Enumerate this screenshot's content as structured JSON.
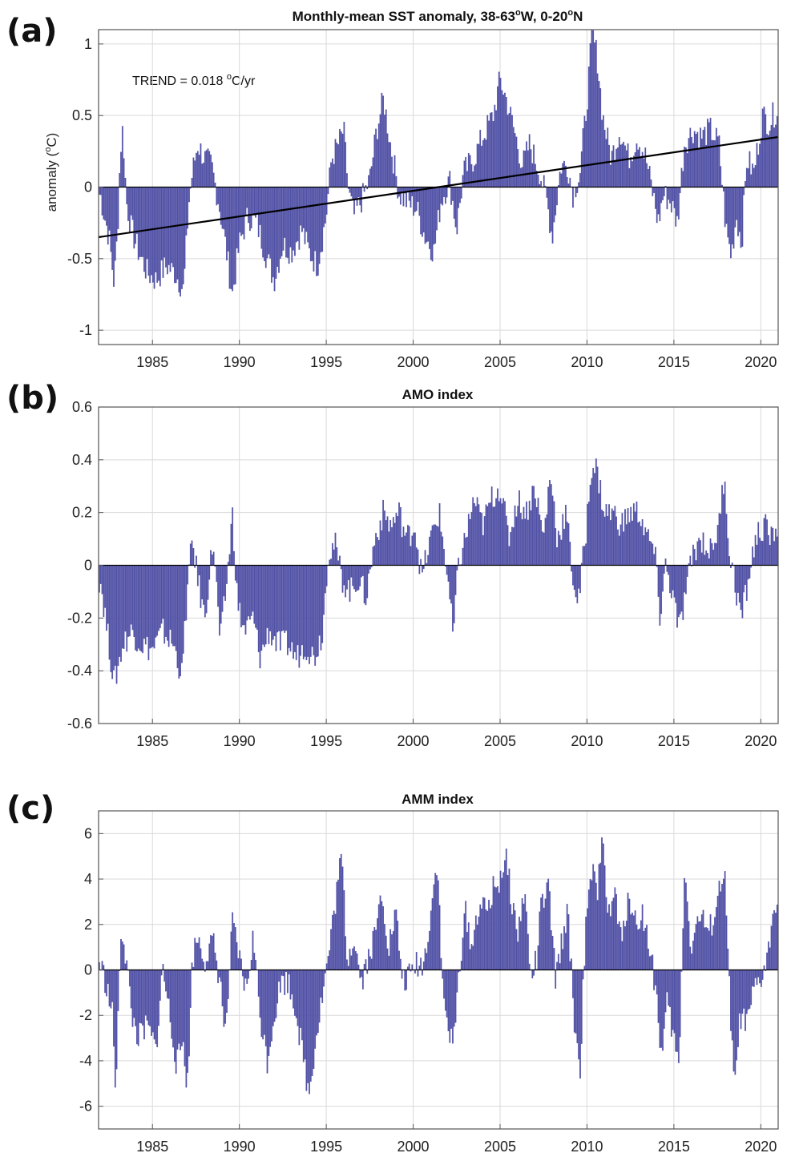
{
  "colors": {
    "bar": "#5151a6",
    "trend": "#000000",
    "grid": "#d9d9d9",
    "axis": "#555555"
  },
  "chart_data": [
    {
      "type": "bar",
      "panel_label": "(a)",
      "title": "Monthly-mean SST anomaly, 38-63°W, 0-20°N",
      "title_parts": {
        "a": "Monthly-mean SST anomaly, 38-63",
        "sup1": "o",
        "b": "W, 0-20",
        "sup2": "o",
        "c": "N"
      },
      "ylabel": "anomaly (°C)",
      "ylabel_parts": {
        "a": "anomaly (",
        "sup": "o",
        "b": "C)"
      },
      "annotation": "TREND = 0.018 °C/yr",
      "annotation_parts": {
        "a": "TREND = 0.018 ",
        "sup": "o",
        "b": "C/yr"
      },
      "xlim": [
        1981.9,
        2021.0
      ],
      "ylim": [
        -1.1,
        1.1
      ],
      "yticks": [
        -1,
        -0.5,
        0,
        0.5,
        1
      ],
      "ytick_labels": [
        "-1",
        "-0.5",
        "0",
        "0.5",
        "1"
      ],
      "xticks": [
        1985,
        1990,
        1995,
        2000,
        2005,
        2010,
        2015,
        2020
      ],
      "xtick_labels": [
        "1985",
        "1990",
        "1995",
        "2000",
        "2005",
        "2010",
        "2015",
        "2020"
      ],
      "grid": true,
      "trend": {
        "slope": 0.018,
        "x0": 1981.9,
        "y0": -0.35,
        "x1": 2021.0,
        "y1": 0.35
      },
      "keyframes": [
        [
          1982.0,
          -0.05
        ],
        [
          1982.2,
          -0.18
        ],
        [
          1982.5,
          -0.35
        ],
        [
          1982.8,
          -0.68
        ],
        [
          1983.0,
          -0.3
        ],
        [
          1983.15,
          0.25
        ],
        [
          1983.3,
          0.42
        ],
        [
          1983.5,
          -0.1
        ],
        [
          1983.8,
          -0.3
        ],
        [
          1984.2,
          -0.45
        ],
        [
          1984.7,
          -0.6
        ],
        [
          1985.2,
          -0.65
        ],
        [
          1985.8,
          -0.55
        ],
        [
          1986.3,
          -0.6
        ],
        [
          1986.8,
          -0.72
        ],
        [
          1987.1,
          -0.1
        ],
        [
          1987.3,
          0.1
        ],
        [
          1987.6,
          0.3
        ],
        [
          1988.0,
          0.2
        ],
        [
          1988.4,
          0.15
        ],
        [
          1988.8,
          -0.1
        ],
        [
          1989.2,
          -0.4
        ],
        [
          1989.6,
          -0.75
        ],
        [
          1990.0,
          -0.4
        ],
        [
          1990.5,
          -0.2
        ],
        [
          1991.0,
          -0.25
        ],
        [
          1991.6,
          -0.5
        ],
        [
          1992.0,
          -0.65
        ],
        [
          1992.5,
          -0.4
        ],
        [
          1993.0,
          -0.45
        ],
        [
          1993.6,
          -0.3
        ],
        [
          1994.0,
          -0.45
        ],
        [
          1994.5,
          -0.55
        ],
        [
          1995.0,
          -0.2
        ],
        [
          1995.3,
          0.2
        ],
        [
          1995.7,
          0.3
        ],
        [
          1996.0,
          0.4
        ],
        [
          1996.3,
          -0.05
        ],
        [
          1996.6,
          -0.2
        ],
        [
          1997.0,
          -0.1
        ],
        [
          1997.5,
          0.05
        ],
        [
          1997.9,
          0.4
        ],
        [
          1998.3,
          0.62
        ],
        [
          1998.7,
          0.3
        ],
        [
          1999.2,
          -0.05
        ],
        [
          1999.6,
          -0.1
        ],
        [
          2000.2,
          -0.15
        ],
        [
          2000.7,
          -0.35
        ],
        [
          2001.2,
          -0.45
        ],
        [
          2001.6,
          -0.1
        ],
        [
          2002.1,
          0.05
        ],
        [
          2002.5,
          -0.3
        ],
        [
          2002.9,
          0.1
        ],
        [
          2003.5,
          0.2
        ],
        [
          2004.0,
          0.35
        ],
        [
          2004.6,
          0.5
        ],
        [
          2005.0,
          0.75
        ],
        [
          2005.4,
          0.6
        ],
        [
          2005.8,
          0.4
        ],
        [
          2006.3,
          0.15
        ],
        [
          2006.7,
          0.3
        ],
        [
          2007.3,
          0.1
        ],
        [
          2007.7,
          -0.1
        ],
        [
          2008.0,
          -0.35
        ],
        [
          2008.5,
          0.15
        ],
        [
          2008.9,
          0.15
        ],
        [
          2009.2,
          -0.05
        ],
        [
          2009.6,
          0.1
        ],
        [
          2010.0,
          0.6
        ],
        [
          2010.3,
          1.08
        ],
        [
          2010.6,
          0.9
        ],
        [
          2010.9,
          0.5
        ],
        [
          2011.4,
          0.2
        ],
        [
          2011.9,
          0.4
        ],
        [
          2012.4,
          0.2
        ],
        [
          2012.9,
          0.35
        ],
        [
          2013.4,
          0.2
        ],
        [
          2013.8,
          -0.05
        ],
        [
          2014.1,
          -0.25
        ],
        [
          2014.4,
          -0.05
        ],
        [
          2014.8,
          -0.1
        ],
        [
          2015.2,
          -0.25
        ],
        [
          2015.6,
          0.3
        ],
        [
          2016.1,
          0.4
        ],
        [
          2016.6,
          0.35
        ],
        [
          2017.1,
          0.4
        ],
        [
          2017.6,
          0.3
        ],
        [
          2018.0,
          -0.3
        ],
        [
          2018.3,
          -0.48
        ],
        [
          2018.6,
          -0.2
        ],
        [
          2018.9,
          -0.4
        ],
        [
          2019.2,
          0.2
        ],
        [
          2019.6,
          0.1
        ],
        [
          2020.1,
          0.5
        ],
        [
          2020.5,
          0.45
        ],
        [
          2020.95,
          0.55
        ]
      ]
    },
    {
      "type": "bar",
      "panel_label": "(b)",
      "title": "AMO index",
      "xlim": [
        1981.9,
        2021.0
      ],
      "ylim": [
        -0.6,
        0.6
      ],
      "yticks": [
        -0.6,
        -0.4,
        -0.2,
        0,
        0.2,
        0.4,
        0.6
      ],
      "ytick_labels": [
        "-0.6",
        "-0.4",
        "-0.2",
        "0",
        "0.2",
        "0.4",
        "0.6"
      ],
      "xticks": [
        1985,
        1990,
        1995,
        2000,
        2005,
        2010,
        2015,
        2020
      ],
      "xtick_labels": [
        "1985",
        "1990",
        "1995",
        "2000",
        "2005",
        "2010",
        "2015",
        "2020"
      ],
      "grid": true,
      "keyframes": [
        [
          1982.0,
          -0.05
        ],
        [
          1982.4,
          -0.25
        ],
        [
          1982.8,
          -0.45
        ],
        [
          1983.3,
          -0.3
        ],
        [
          1983.8,
          -0.25
        ],
        [
          1984.4,
          -0.3
        ],
        [
          1985.0,
          -0.32
        ],
        [
          1985.6,
          -0.25
        ],
        [
          1986.2,
          -0.3
        ],
        [
          1986.7,
          -0.42
        ],
        [
          1987.0,
          -0.1
        ],
        [
          1987.3,
          0.1
        ],
        [
          1987.6,
          -0.05
        ],
        [
          1988.0,
          -0.2
        ],
        [
          1988.5,
          0.1
        ],
        [
          1988.9,
          -0.3
        ],
        [
          1989.3,
          -0.05
        ],
        [
          1989.6,
          0.2
        ],
        [
          1989.9,
          -0.15
        ],
        [
          1990.3,
          -0.25
        ],
        [
          1990.8,
          -0.2
        ],
        [
          1991.2,
          -0.35
        ],
        [
          1991.7,
          -0.25
        ],
        [
          1992.2,
          -0.3
        ],
        [
          1992.8,
          -0.3
        ],
        [
          1993.3,
          -0.35
        ],
        [
          1993.8,
          -0.3
        ],
        [
          1994.3,
          -0.35
        ],
        [
          1994.8,
          -0.25
        ],
        [
          1995.1,
          0.05
        ],
        [
          1995.5,
          0.08
        ],
        [
          1995.9,
          -0.05
        ],
        [
          1996.4,
          -0.1
        ],
        [
          1996.8,
          -0.05
        ],
        [
          1997.3,
          -0.12
        ],
        [
          1997.8,
          0.1
        ],
        [
          1998.3,
          0.2
        ],
        [
          1998.7,
          0.15
        ],
        [
          1999.2,
          0.2
        ],
        [
          1999.6,
          0.1
        ],
        [
          2000.1,
          0.15
        ],
        [
          2000.5,
          -0.05
        ],
        [
          2001.0,
          0.1
        ],
        [
          2001.5,
          0.2
        ],
        [
          2002.0,
          -0.05
        ],
        [
          2002.3,
          -0.28
        ],
        [
          2002.6,
          0.0
        ],
        [
          2003.0,
          0.1
        ],
        [
          2003.5,
          0.25
        ],
        [
          2004.0,
          0.15
        ],
        [
          2004.5,
          0.25
        ],
        [
          2005.0,
          0.3
        ],
        [
          2005.5,
          0.1
        ],
        [
          2006.0,
          0.25
        ],
        [
          2006.5,
          0.2
        ],
        [
          2007.0,
          0.3
        ],
        [
          2007.5,
          0.1
        ],
        [
          2007.9,
          0.35
        ],
        [
          2008.3,
          0.1
        ],
        [
          2008.8,
          0.2
        ],
        [
          2009.2,
          -0.05
        ],
        [
          2009.5,
          -0.15
        ],
        [
          2009.9,
          0.1
        ],
        [
          2010.3,
          0.4
        ],
        [
          2010.6,
          0.35
        ],
        [
          2011.0,
          0.2
        ],
        [
          2011.5,
          0.2
        ],
        [
          2012.0,
          0.15
        ],
        [
          2012.5,
          0.2
        ],
        [
          2013.0,
          0.2
        ],
        [
          2013.5,
          0.1
        ],
        [
          2013.9,
          0.05
        ],
        [
          2014.2,
          -0.2
        ],
        [
          2014.5,
          0.0
        ],
        [
          2014.9,
          -0.1
        ],
        [
          2015.3,
          -0.25
        ],
        [
          2015.7,
          -0.1
        ],
        [
          2016.1,
          0.05
        ],
        [
          2016.6,
          0.1
        ],
        [
          2017.1,
          0.05
        ],
        [
          2017.6,
          0.15
        ],
        [
          2017.9,
          0.35
        ],
        [
          2018.2,
          0.05
        ],
        [
          2018.6,
          -0.1
        ],
        [
          2018.9,
          -0.2
        ],
        [
          2019.3,
          -0.05
        ],
        [
          2019.7,
          0.1
        ],
        [
          2020.2,
          0.15
        ],
        [
          2020.6,
          0.1
        ],
        [
          2020.95,
          0.15
        ]
      ]
    },
    {
      "type": "bar",
      "panel_label": "(c)",
      "title": "AMM index",
      "xlim": [
        1981.9,
        2021.0
      ],
      "ylim": [
        -7,
        7
      ],
      "yticks": [
        -6,
        -4,
        -2,
        0,
        2,
        4,
        6
      ],
      "ytick_labels": [
        "-6",
        "-4",
        "-2",
        "0",
        "2",
        "4",
        "6"
      ],
      "xticks": [
        1985,
        1990,
        1995,
        2000,
        2005,
        2010,
        2015,
        2020
      ],
      "xtick_labels": [
        "1985",
        "1990",
        "1995",
        "2000",
        "2005",
        "2010",
        "2015",
        "2020"
      ],
      "grid": true,
      "keyframes": [
        [
          1982.0,
          0.3
        ],
        [
          1982.3,
          -0.5
        ],
        [
          1982.7,
          -2.0
        ],
        [
          1982.9,
          -5.5
        ],
        [
          1983.2,
          2.0
        ],
        [
          1983.5,
          0.5
        ],
        [
          1983.8,
          -2.0
        ],
        [
          1984.2,
          -3.0
        ],
        [
          1984.7,
          -2.5
        ],
        [
          1985.2,
          -3.5
        ],
        [
          1985.6,
          0.1
        ],
        [
          1986.0,
          -2.0
        ],
        [
          1986.4,
          -4.2
        ],
        [
          1986.8,
          -3.0
        ],
        [
          1987.0,
          -5.5
        ],
        [
          1987.3,
          0.5
        ],
        [
          1987.6,
          1.5
        ],
        [
          1988.0,
          0.5
        ],
        [
          1988.5,
          1.2
        ],
        [
          1988.9,
          -0.5
        ],
        [
          1989.2,
          -3.0
        ],
        [
          1989.6,
          2.0
        ],
        [
          1990.0,
          0.5
        ],
        [
          1990.4,
          -1.0
        ],
        [
          1990.8,
          1.5
        ],
        [
          1991.2,
          -2.0
        ],
        [
          1991.6,
          -4.0
        ],
        [
          1992.0,
          -2.0
        ],
        [
          1992.4,
          -0.5
        ],
        [
          1992.8,
          -0.5
        ],
        [
          1993.2,
          -1.5
        ],
        [
          1993.7,
          -4.0
        ],
        [
          1994.0,
          -5.5
        ],
        [
          1994.4,
          -3.0
        ],
        [
          1994.8,
          -1.0
        ],
        [
          1995.2,
          1.0
        ],
        [
          1995.6,
          3.5
        ],
        [
          1995.9,
          5.0
        ],
        [
          1996.2,
          0.5
        ],
        [
          1996.6,
          1.5
        ],
        [
          1997.0,
          -0.5
        ],
        [
          1997.4,
          0.5
        ],
        [
          1997.8,
          1.5
        ],
        [
          1998.2,
          3.5
        ],
        [
          1998.6,
          1.0
        ],
        [
          1999.0,
          2.5
        ],
        [
          1999.4,
          -0.5
        ],
        [
          1999.8,
          -0.3
        ],
        [
          2000.2,
          0.3
        ],
        [
          2000.6,
          0.2
        ],
        [
          2001.0,
          2.5
        ],
        [
          2001.4,
          5.0
        ],
        [
          2001.7,
          -1.0
        ],
        [
          2002.0,
          -2.5
        ],
        [
          2002.3,
          -3.5
        ],
        [
          2002.7,
          0.5
        ],
        [
          2003.0,
          2.5
        ],
        [
          2003.4,
          1.0
        ],
        [
          2003.8,
          3.0
        ],
        [
          2004.2,
          2.5
        ],
        [
          2004.6,
          3.5
        ],
        [
          2005.0,
          4.0
        ],
        [
          2005.3,
          5.0
        ],
        [
          2005.7,
          3.0
        ],
        [
          2006.0,
          1.5
        ],
        [
          2006.4,
          3.5
        ],
        [
          2006.8,
          -0.5
        ],
        [
          2007.1,
          0.5
        ],
        [
          2007.4,
          3.0
        ],
        [
          2007.8,
          3.5
        ],
        [
          2008.2,
          -0.5
        ],
        [
          2008.6,
          1.5
        ],
        [
          2008.9,
          2.5
        ],
        [
          2009.3,
          -2.5
        ],
        [
          2009.6,
          -4.5
        ],
        [
          2009.9,
          1.5
        ],
        [
          2010.3,
          4.5
        ],
        [
          2010.6,
          3.0
        ],
        [
          2010.9,
          6.8
        ],
        [
          2011.2,
          2.0
        ],
        [
          2011.6,
          3.5
        ],
        [
          2012.0,
          1.0
        ],
        [
          2012.4,
          3.5
        ],
        [
          2012.8,
          2.0
        ],
        [
          2013.2,
          2.5
        ],
        [
          2013.6,
          1.0
        ],
        [
          2014.0,
          -1.0
        ],
        [
          2014.3,
          -4.0
        ],
        [
          2014.6,
          -1.5
        ],
        [
          2015.0,
          -3.0
        ],
        [
          2015.3,
          -4.5
        ],
        [
          2015.6,
          4.5
        ],
        [
          2016.0,
          1.0
        ],
        [
          2016.5,
          2.5
        ],
        [
          2017.0,
          1.5
        ],
        [
          2017.5,
          3.0
        ],
        [
          2017.9,
          4.5
        ],
        [
          2018.2,
          -1.0
        ],
        [
          2018.5,
          -5.5
        ],
        [
          2018.8,
          -2.0
        ],
        [
          2019.2,
          -2.5
        ],
        [
          2019.6,
          -1.0
        ],
        [
          2020.0,
          -0.5
        ],
        [
          2020.4,
          0.5
        ],
        [
          2020.7,
          2.5
        ],
        [
          2020.95,
          3.5
        ]
      ]
    }
  ]
}
